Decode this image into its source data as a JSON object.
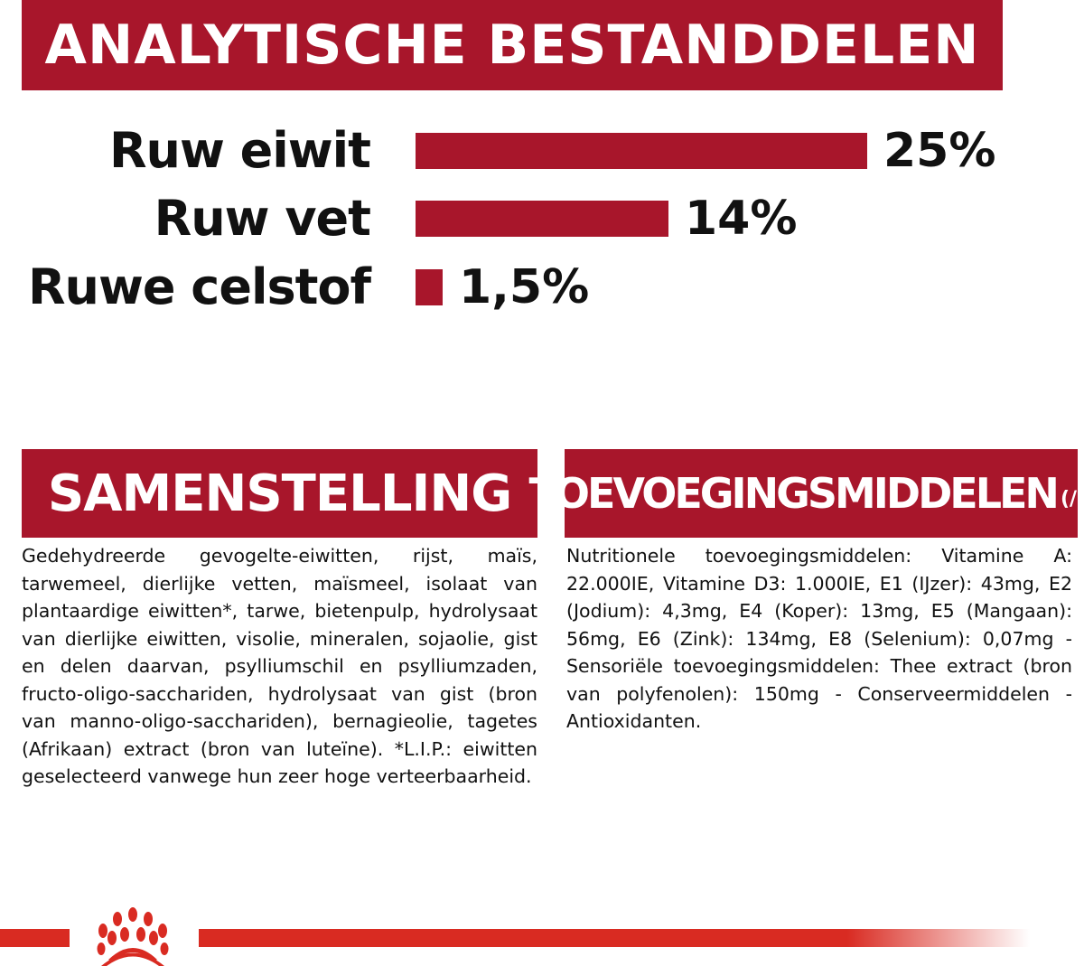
{
  "analytical": {
    "title": "ANALYTISCHE BESTANDDELEN",
    "rows": [
      {
        "label": "Ruw eiwit",
        "value": 25,
        "value_label": "25%"
      },
      {
        "label": "Ruw vet",
        "value": 14,
        "value_label": "14%"
      },
      {
        "label": "Ruwe celstof",
        "value": 1.5,
        "value_label": "1,5%"
      }
    ]
  },
  "chart_data": {
    "type": "bar",
    "orientation": "horizontal",
    "categories": [
      "Ruw eiwit",
      "Ruw vet",
      "Ruwe celstof"
    ],
    "values": [
      25,
      14,
      1.5
    ],
    "data_labels": [
      "25%",
      "14%",
      "1,5%"
    ],
    "title": "ANALYTISCHE BESTANDDELEN",
    "grid": false,
    "color": "#a8162b"
  },
  "composition": {
    "title": "SAMENSTELLING",
    "text": "Gedehydreerde gevogelte-eiwitten, rijst, maïs, tarwemeel, dierlijke vetten, maïsmeel, isolaat van plantaardige eiwitten*, tarwe, bietenpulp, hydrolysaat van dierlijke eiwitten, visolie, mineralen, sojaolie, gist en delen daarvan, psylliumschil en psylliumzaden, fructo-oligo-sacchariden, hydrolysaat van gist (bron van manno-oligo-sacchariden), bernagieolie, tagetes (Afrikaan) extract (bron van luteïne). *L.I.P.: eiwitten geselecteerd vanwege hun zeer hoge verteerbaarheid."
  },
  "additives": {
    "title": "TOEVOEGINGSMIDDELEN",
    "unit": "(/kg)",
    "text": "Nutritionele toevoegingsmiddelen: Vitamine A: 22.000IE, Vitamine D3: 1.000IE, E1 (IJzer): 43mg, E2 (Jodium): 4,3mg, E4 (Koper): 13mg, E5 (Mangaan): 56mg, E6 (Zink): 134mg, E8 (Selenium): 0,07mg - Sensoriële toevoegingsmiddelen: Thee extract (bron van polyfenolen): 150mg - Conserveermiddelen - Antioxidanten."
  },
  "colors": {
    "brand_dark_red": "#a8162b",
    "brand_red": "#d92b22"
  },
  "footer": {
    "logo_icon": "royal-canin-crown-icon"
  }
}
